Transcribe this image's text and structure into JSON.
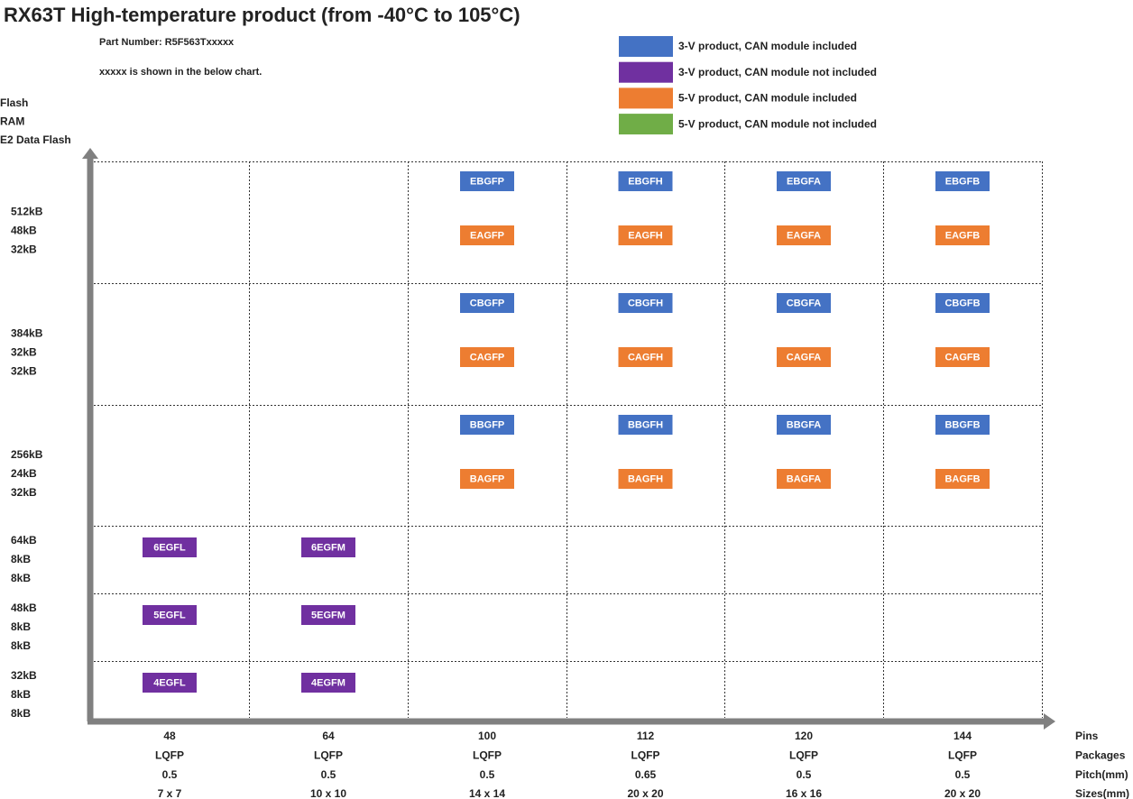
{
  "title": "RX63T  High-temperature product (from -40°C to 105°C)",
  "part_number": "Part Number: R5F563Txxxxx",
  "note": "xxxxx is shown in the below chart.",
  "legend": [
    {
      "label": "3-V product,  CAN module included",
      "color": "#4472c4"
    },
    {
      "label": "3-V product,  CAN module not included",
      "color": "#7030a0"
    },
    {
      "label": "5-V product,  CAN module included",
      "color": "#ed7d31"
    },
    {
      "label": "5-V product,  CAN module not included",
      "color": "#70ad47"
    }
  ],
  "y_axis_labels": [
    "Flash",
    "RAM",
    "E2 Data Flash"
  ],
  "rows": [
    {
      "labels": [
        "512kB",
        "48kB",
        "32kB"
      ],
      "cells": [
        [],
        [],
        [
          {
            "code": "EBGFP",
            "color": "#4472c4"
          },
          {
            "code": "EAGFP",
            "color": "#ed7d31"
          }
        ],
        [
          {
            "code": "EBGFH",
            "color": "#4472c4"
          },
          {
            "code": "EAGFH",
            "color": "#ed7d31"
          }
        ],
        [
          {
            "code": "EBGFA",
            "color": "#4472c4"
          },
          {
            "code": "EAGFA",
            "color": "#ed7d31"
          }
        ],
        [
          {
            "code": "EBGFB",
            "color": "#4472c4"
          },
          {
            "code": "EAGFB",
            "color": "#ed7d31"
          }
        ]
      ]
    },
    {
      "labels": [
        "384kB",
        "32kB",
        "32kB"
      ],
      "cells": [
        [],
        [],
        [
          {
            "code": "CBGFP",
            "color": "#4472c4"
          },
          {
            "code": "CAGFP",
            "color": "#ed7d31"
          }
        ],
        [
          {
            "code": "CBGFH",
            "color": "#4472c4"
          },
          {
            "code": "CAGFH",
            "color": "#ed7d31"
          }
        ],
        [
          {
            "code": "CBGFA",
            "color": "#4472c4"
          },
          {
            "code": "CAGFA",
            "color": "#ed7d31"
          }
        ],
        [
          {
            "code": "CBGFB",
            "color": "#4472c4"
          },
          {
            "code": "CAGFB",
            "color": "#ed7d31"
          }
        ]
      ]
    },
    {
      "labels": [
        "256kB",
        "24kB",
        "32kB"
      ],
      "cells": [
        [],
        [],
        [
          {
            "code": "BBGFP",
            "color": "#4472c4"
          },
          {
            "code": "BAGFP",
            "color": "#ed7d31"
          }
        ],
        [
          {
            "code": "BBGFH",
            "color": "#4472c4"
          },
          {
            "code": "BAGFH",
            "color": "#ed7d31"
          }
        ],
        [
          {
            "code": "BBGFA",
            "color": "#4472c4"
          },
          {
            "code": "BAGFA",
            "color": "#ed7d31"
          }
        ],
        [
          {
            "code": "BBGFB",
            "color": "#4472c4"
          },
          {
            "code": "BAGFB",
            "color": "#ed7d31"
          }
        ]
      ]
    },
    {
      "labels": [
        "64kB",
        "8kB",
        "8kB"
      ],
      "cells": [
        [
          {
            "code": "6EGFL",
            "color": "#7030a0"
          }
        ],
        [
          {
            "code": "6EGFM",
            "color": "#7030a0"
          }
        ],
        [],
        [],
        [],
        []
      ]
    },
    {
      "labels": [
        "48kB",
        "8kB",
        "8kB"
      ],
      "cells": [
        [
          {
            "code": "5EGFL",
            "color": "#7030a0"
          }
        ],
        [
          {
            "code": "5EGFM",
            "color": "#7030a0"
          }
        ],
        [],
        [],
        [],
        []
      ]
    },
    {
      "labels": [
        "32kB",
        "8kB",
        "8kB"
      ],
      "cells": [
        [
          {
            "code": "4EGFL",
            "color": "#7030a0"
          }
        ],
        [
          {
            "code": "4EGFM",
            "color": "#7030a0"
          }
        ],
        [],
        [],
        [],
        []
      ]
    }
  ],
  "columns": [
    [
      "48",
      "LQFP",
      "0.5",
      "7 x 7"
    ],
    [
      "64",
      "LQFP",
      "0.5",
      "10 x 10"
    ],
    [
      "100",
      "LQFP",
      "0.5",
      "14 x 14"
    ],
    [
      "112",
      "LQFP",
      "0.65",
      "20 x 20"
    ],
    [
      "120",
      "LQFP",
      "0.5",
      "16 x 16"
    ],
    [
      "144",
      "LQFP",
      "0.5",
      "20 x 20"
    ]
  ],
  "x_axis_labels": [
    "Pins",
    "Packages",
    "Pitch(mm)",
    "Sizes(mm)"
  ]
}
